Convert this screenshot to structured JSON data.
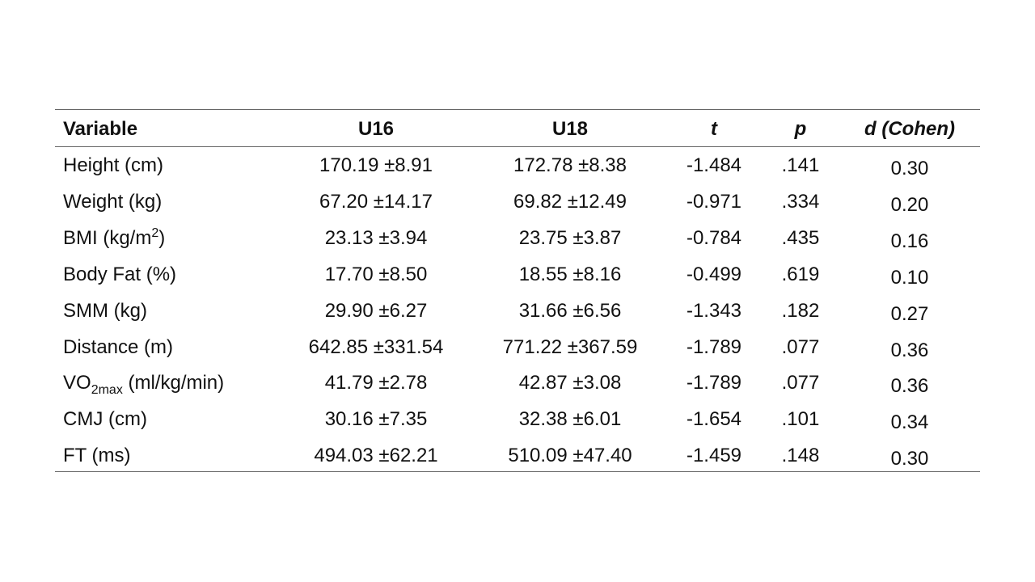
{
  "table": {
    "header": [
      "Variable",
      "U16",
      "U18",
      "t",
      "p",
      "d (Cohen)"
    ],
    "rows": [
      [
        "Height (cm)",
        "170.19 ±8.91",
        "172.78 ±8.38",
        "-1.484",
        ".141",
        "0.30"
      ],
      [
        "Weight (kg)",
        "67.20 ±14.17",
        "69.82 ±12.49",
        "-0.971",
        ".334",
        "0.20"
      ],
      [
        {
          "base": "BMI (kg/m",
          "sup": "2",
          "tail": ")"
        },
        "23.13 ±3.94",
        "23.75 ±3.87",
        "-0.784",
        ".435",
        "0.16"
      ],
      [
        "Body Fat (%)",
        "17.70 ±8.50",
        "18.55 ±8.16",
        "-0.499",
        ".619",
        "0.10"
      ],
      [
        "SMM (kg)",
        "29.90 ±6.27",
        "31.66 ±6.56",
        "-1.343",
        ".182",
        "0.27"
      ],
      [
        "Distance (m)",
        "642.85 ±331.54",
        "771.22 ±367.59",
        "-1.789",
        ".077",
        "0.36"
      ],
      [
        {
          "base": "VO",
          "sub": "2max",
          "tail": " (ml/kg/min)"
        },
        "41.79 ±2.78",
        "42.87 ±3.08",
        "-1.789",
        ".077",
        "0.36"
      ],
      [
        "CMJ (cm)",
        "30.16 ±7.35",
        "32.38 ±6.01",
        "-1.654",
        ".101",
        "0.34"
      ],
      [
        "FT (ms)",
        "494.03 ±62.21",
        "510.09 ±47.40",
        "-1.459",
        ".148",
        "0.30"
      ]
    ]
  }
}
